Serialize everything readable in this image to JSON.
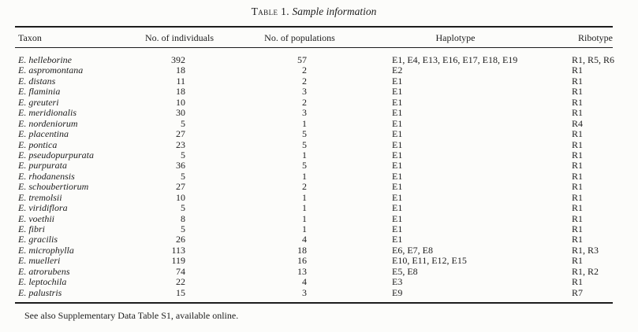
{
  "colors": {
    "background": "#fcfcfa",
    "text": "#1d1d1d",
    "rule": "#1d1d1d"
  },
  "table": {
    "title_label": "Table 1.",
    "title_text": "Sample information",
    "columns": [
      "Taxon",
      "No. of individuals",
      "No. of populations",
      "Haplotype",
      "Ribotype"
    ],
    "rows": [
      {
        "taxon": "E. helleborine",
        "individuals": "392",
        "populations": "57",
        "haplotype": "E1, E4, E13, E16, E17, E18, E19",
        "ribotype": "R1, R5, R6"
      },
      {
        "taxon": "E. aspromontana",
        "individuals": "18",
        "populations": "2",
        "haplotype": "E2",
        "ribotype": "R1"
      },
      {
        "taxon": "E. distans",
        "individuals": "11",
        "populations": "2",
        "haplotype": "E1",
        "ribotype": "R1"
      },
      {
        "taxon": "E. flaminia",
        "individuals": "18",
        "populations": "3",
        "haplotype": "E1",
        "ribotype": "R1"
      },
      {
        "taxon": "E. greuteri",
        "individuals": "10",
        "populations": "2",
        "haplotype": "E1",
        "ribotype": "R1"
      },
      {
        "taxon": "E. meridionalis",
        "individuals": "30",
        "populations": "3",
        "haplotype": "E1",
        "ribotype": "R1"
      },
      {
        "taxon": "E. nordeniorum",
        "individuals": "5",
        "populations": "1",
        "haplotype": "E1",
        "ribotype": "R4"
      },
      {
        "taxon": "E. placentina",
        "individuals": "27",
        "populations": "5",
        "haplotype": "E1",
        "ribotype": "R1"
      },
      {
        "taxon": "E. pontica",
        "individuals": "23",
        "populations": "5",
        "haplotype": "E1",
        "ribotype": "R1"
      },
      {
        "taxon": "E. pseudopurpurata",
        "individuals": "5",
        "populations": "1",
        "haplotype": "E1",
        "ribotype": "R1"
      },
      {
        "taxon": "E. purpurata",
        "individuals": "36",
        "populations": "5",
        "haplotype": "E1",
        "ribotype": "R1"
      },
      {
        "taxon": "E. rhodanensis",
        "individuals": "5",
        "populations": "1",
        "haplotype": "E1",
        "ribotype": "R1"
      },
      {
        "taxon": "E. schoubertiorum",
        "individuals": "27",
        "populations": "2",
        "haplotype": "E1",
        "ribotype": "R1"
      },
      {
        "taxon": "E. tremolsii",
        "individuals": "10",
        "populations": "1",
        "haplotype": "E1",
        "ribotype": "R1"
      },
      {
        "taxon": "E. viridiflora",
        "individuals": "5",
        "populations": "1",
        "haplotype": "E1",
        "ribotype": "R1"
      },
      {
        "taxon": "E. voethii",
        "individuals": "8",
        "populations": "1",
        "haplotype": "E1",
        "ribotype": "R1"
      },
      {
        "taxon": "E. fibri",
        "individuals": "5",
        "populations": "1",
        "haplotype": "E1",
        "ribotype": "R1"
      },
      {
        "taxon": "E. gracilis",
        "individuals": "26",
        "populations": "4",
        "haplotype": "E1",
        "ribotype": "R1"
      },
      {
        "taxon": "E. microphylla",
        "individuals": "113",
        "populations": "18",
        "haplotype": "E6, E7, E8",
        "ribotype": "R1, R3"
      },
      {
        "taxon": "E. muelleri",
        "individuals": "119",
        "populations": "16",
        "haplotype": "E10, E11, E12, E15",
        "ribotype": "R1"
      },
      {
        "taxon": "E. atrorubens",
        "individuals": "74",
        "populations": "13",
        "haplotype": "E5, E8",
        "ribotype": "R1, R2"
      },
      {
        "taxon": "E. leptochila",
        "individuals": "22",
        "populations": "4",
        "haplotype": "E3",
        "ribotype": "R1"
      },
      {
        "taxon": "E. palustris",
        "individuals": "15",
        "populations": "3",
        "haplotype": "E9",
        "ribotype": "R7"
      }
    ],
    "footnote": "See also Supplementary Data Table S1, available online."
  }
}
